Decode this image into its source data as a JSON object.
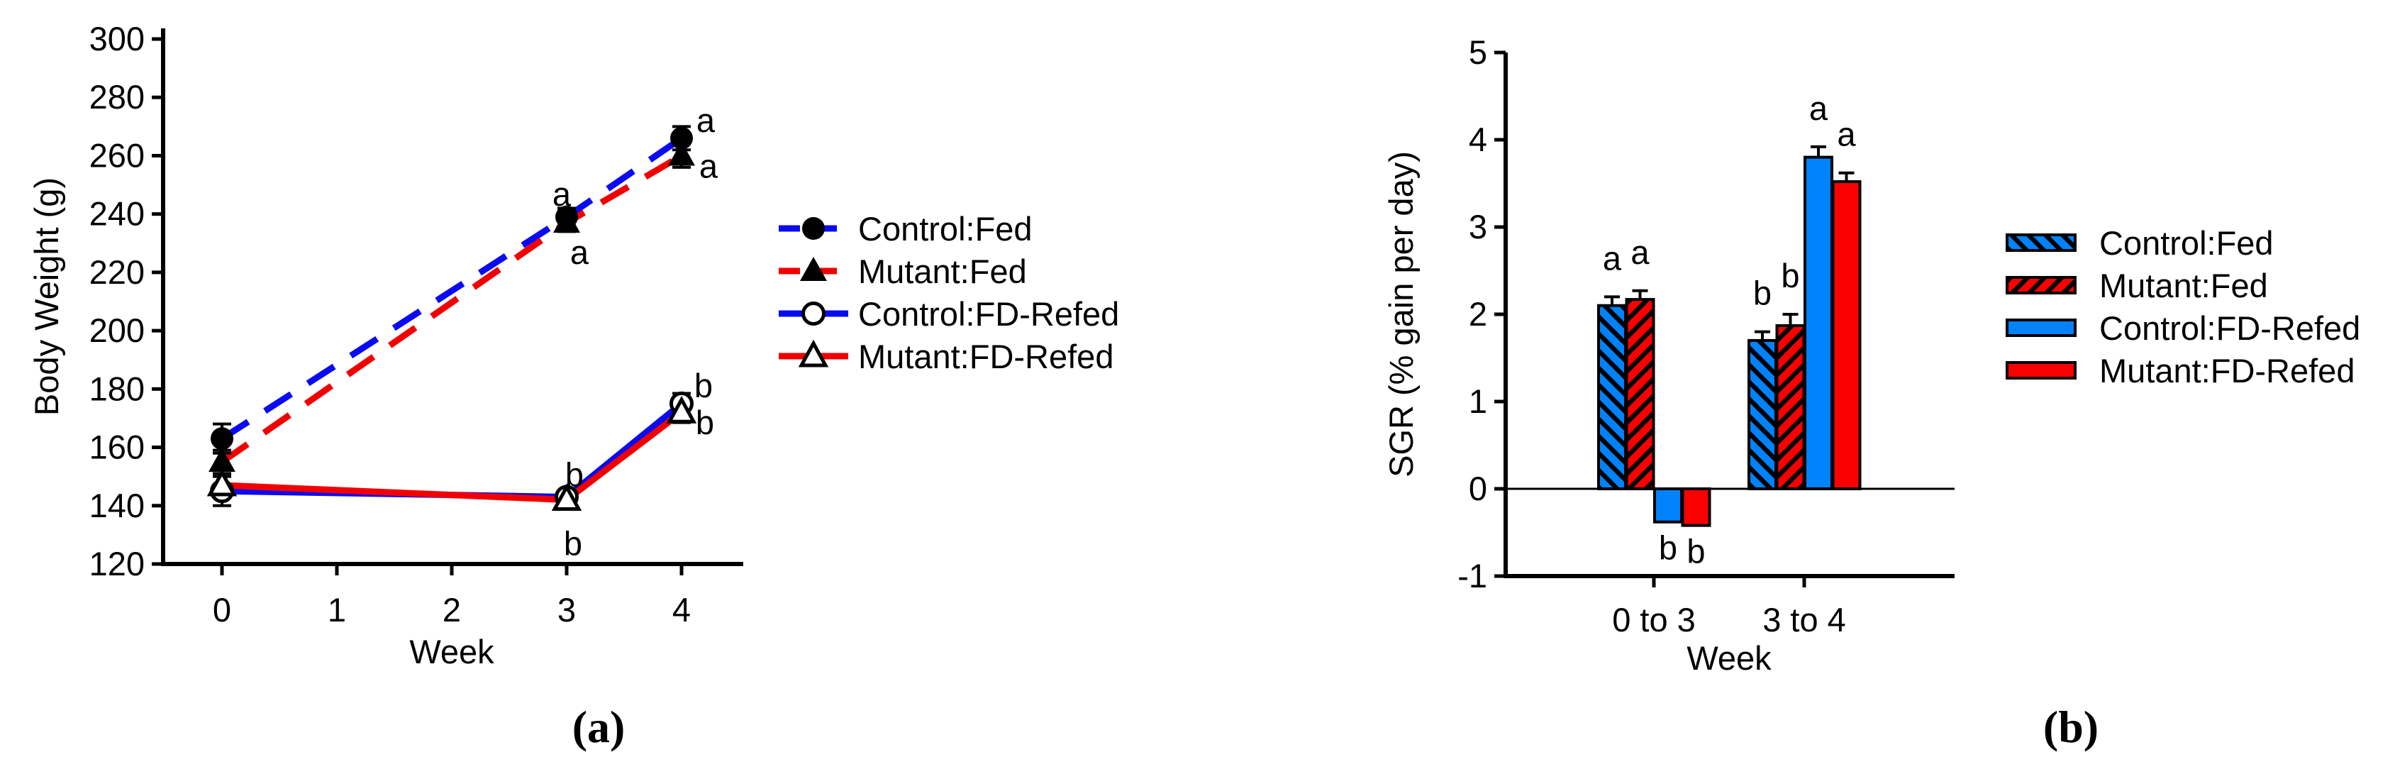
{
  "figure": {
    "background": "#ffffff",
    "panel_a_label": "(a)",
    "panel_b_label": "(b)"
  },
  "colors": {
    "line_blue": "#0a0af2",
    "line_red": "#f20000",
    "bar_blue": "#0082fb",
    "bar_red": "#fb0000",
    "axis": "#000000",
    "marker_fill": "#000000",
    "open_marker_fill": "#ffffff",
    "annotation": "#000000"
  },
  "chart_data": [
    {
      "id": "a",
      "type": "line",
      "panel_label": "(a)",
      "xlabel": "Week",
      "ylabel": "Body Weight (g)",
      "x_ticks": [
        0,
        1,
        2,
        3,
        4
      ],
      "y_ticks": [
        300,
        280,
        260,
        240,
        220,
        200,
        180,
        160,
        140,
        120
      ],
      "ylim": [
        120,
        300
      ],
      "grid": false,
      "legend_position": "right-of-plot",
      "x": [
        0,
        3,
        4
      ],
      "series": [
        {
          "name": "Control:Fed",
          "color": "line_blue",
          "line": "dashed",
          "marker": "filled-circle",
          "values": [
            163,
            239,
            266
          ],
          "errors": [
            5,
            3,
            4
          ],
          "annotations": [
            null,
            {
              "text": "a",
              "dx": -7,
              "dy": -33
            },
            {
              "text": "a",
              "dx": 34,
              "dy": -26
            }
          ]
        },
        {
          "name": "Mutant:Fed",
          "color": "line_red",
          "line": "dashed",
          "marker": "filled-triangle",
          "values": [
            155,
            237,
            260
          ],
          "errors": [
            4,
            3,
            4
          ],
          "annotations": [
            null,
            {
              "text": "a",
              "dx": 18,
              "dy": 41
            },
            {
              "text": "a",
              "dx": 38,
              "dy": 14
            }
          ]
        },
        {
          "name": "Control:FD-Refed",
          "color": "line_blue",
          "line": "solid",
          "marker": "open-circle",
          "values": [
            145,
            143,
            175
          ],
          "errors": [
            5,
            2,
            3.5
          ],
          "annotations": [
            null,
            {
              "text": "b",
              "dx": 11,
              "dy": -32
            },
            {
              "text": "b",
              "dx": 31,
              "dy": -26
            }
          ]
        },
        {
          "name": "Mutant:FD-Refed",
          "color": "line_red",
          "line": "solid",
          "marker": "open-triangle",
          "values": [
            147,
            142,
            172
          ],
          "errors": [
            4,
            2,
            3.5
          ],
          "annotations": [
            null,
            {
              "text": "b",
              "dx": 9,
              "dy": 61
            },
            {
              "text": "b",
              "dx": 33,
              "dy": 14
            }
          ]
        }
      ]
    },
    {
      "id": "b",
      "type": "bar",
      "panel_label": "(b)",
      "xlabel": "Week",
      "ylabel": "SGR (% gain per day)",
      "categories": [
        "0 to 3",
        "3 to 4"
      ],
      "y_ticks": [
        5,
        4,
        3,
        2,
        1,
        0,
        -1
      ],
      "ylim": [
        -1,
        5
      ],
      "grid": false,
      "zero_line": true,
      "legend_position": "right-of-plot",
      "series": [
        {
          "name": "Control:Fed",
          "fill": "hatch_blue",
          "values": [
            2.1,
            1.7
          ],
          "errors": [
            0.1,
            0.1
          ],
          "letters": [
            "a",
            "b"
          ]
        },
        {
          "name": "Mutant:Fed",
          "fill": "hatch_red",
          "values": [
            2.17,
            1.87
          ],
          "errors": [
            0.1,
            0.13
          ],
          "letters": [
            "a",
            "b"
          ]
        },
        {
          "name": "Control:FD-Refed",
          "fill": "bar_blue",
          "values": [
            -0.38,
            3.8
          ],
          "errors": [
            null,
            0.12
          ],
          "letters": [
            "b",
            "a"
          ]
        },
        {
          "name": "Mutant:FD-Refed",
          "fill": "bar_red",
          "values": [
            -0.42,
            3.52
          ],
          "errors": [
            null,
            0.1
          ],
          "letters": [
            "b",
            "a"
          ]
        }
      ]
    }
  ]
}
